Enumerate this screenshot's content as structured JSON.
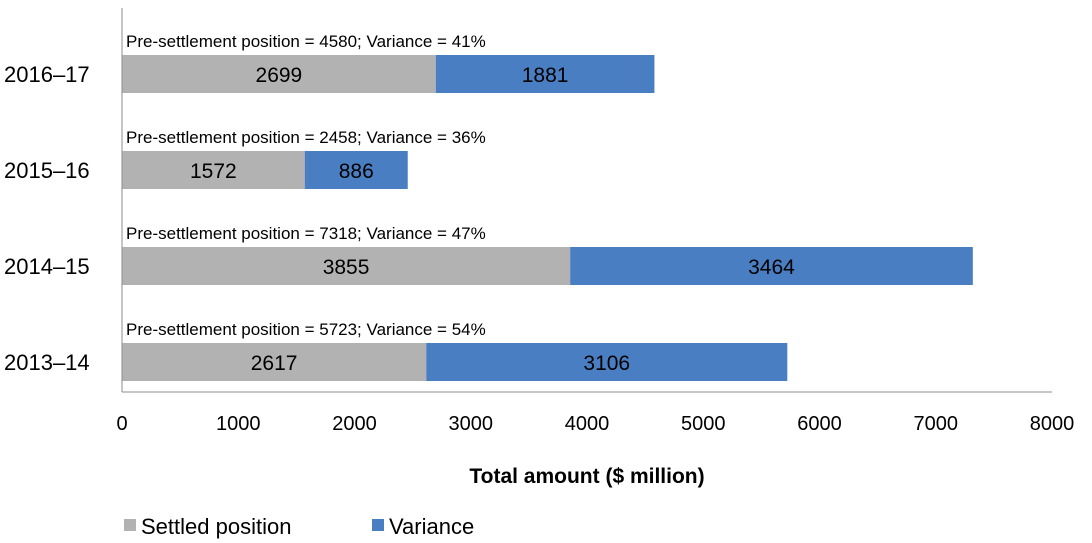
{
  "chart_data": {
    "type": "bar",
    "orientation": "horizontal",
    "stacked": true,
    "categories": [
      "2013–14",
      "2014–15",
      "2015–16",
      "2016–17"
    ],
    "series": [
      {
        "name": "Settled position",
        "color": "#b2b2b2",
        "values": [
          2617,
          3855,
          1572,
          2699
        ]
      },
      {
        "name": "Variance",
        "color": "#4a7ec2",
        "values": [
          3106,
          3464,
          886,
          1881
        ]
      }
    ],
    "annotations": [
      "Pre-settlement position = 5723; Variance = 54%",
      "Pre-settlement position = 7318; Variance = 47%",
      "Pre-settlement position = 2458; Variance = 36%",
      "Pre-settlement position = 4580; Variance = 41%"
    ],
    "xlabel": "Total amount ($ million)",
    "ylabel": "",
    "xlim": [
      0,
      8000
    ],
    "xticks": [
      0,
      1000,
      2000,
      3000,
      4000,
      5000,
      6000,
      7000,
      8000
    ],
    "grid": false,
    "legend": "bottom-left",
    "axis_color": "#8c8c8c"
  }
}
